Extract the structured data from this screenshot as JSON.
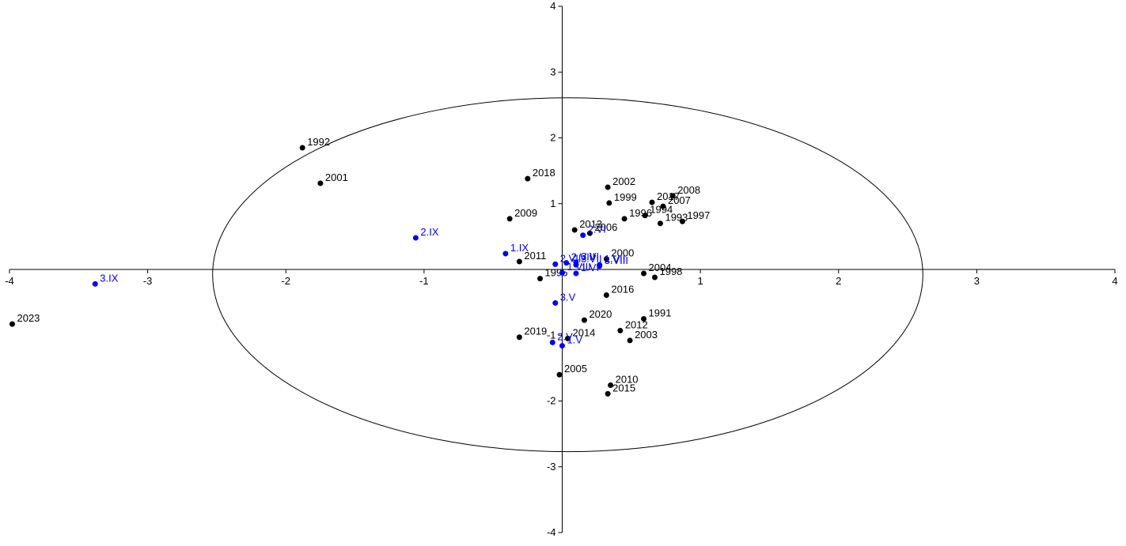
{
  "chart_data": {
    "type": "scatter",
    "title": "",
    "xlabel": "",
    "ylabel": "",
    "xlim": [
      -4,
      4
    ],
    "ylim": [
      -4,
      4
    ],
    "grid": false,
    "x_ticks": [
      -4,
      -3,
      -2,
      -1,
      1,
      2,
      3,
      4
    ],
    "y_ticks": [
      4,
      3,
      2,
      1,
      -1,
      -2,
      -3,
      -4
    ],
    "ellipse": {
      "cx": 0.04,
      "cy": -0.08,
      "rx": 2.57,
      "ry": 2.69
    },
    "colors": {
      "years": "#000000",
      "periods": "#0000ff",
      "axes": "#000000"
    },
    "series": [
      {
        "points": [
          {
            "label": "1991",
            "x": 0.59,
            "y": -0.75
          },
          {
            "label": "1992",
            "x": -1.88,
            "y": 1.85
          },
          {
            "label": "1993",
            "x": 0.71,
            "y": 0.7
          },
          {
            "label": "1994",
            "x": 0.6,
            "y": 0.82
          },
          {
            "label": "1995",
            "x": -0.16,
            "y": -0.14
          },
          {
            "label": "1996",
            "x": 0.45,
            "y": 0.77
          },
          {
            "label": "1997",
            "x": 0.87,
            "y": 0.73
          },
          {
            "label": "1998",
            "x": 0.67,
            "y": -0.12
          },
          {
            "label": "1999",
            "x": 0.34,
            "y": 1.01
          },
          {
            "label": "2000",
            "x": 0.32,
            "y": 0.16
          },
          {
            "label": "2001",
            "x": -1.75,
            "y": 1.31
          },
          {
            "label": "2002",
            "x": 0.33,
            "y": 1.25
          },
          {
            "label": "2003",
            "x": 0.49,
            "y": -1.08
          },
          {
            "label": "2004",
            "x": 0.59,
            "y": -0.06
          },
          {
            "label": "2005",
            "x": -0.02,
            "y": -1.6
          },
          {
            "label": "2006",
            "x": 0.2,
            "y": 0.55
          },
          {
            "label": "2007",
            "x": 0.73,
            "y": 0.96
          },
          {
            "label": "2008",
            "x": 0.8,
            "y": 1.12
          },
          {
            "label": "2009",
            "x": -0.38,
            "y": 0.77
          },
          {
            "label": "2010",
            "x": 0.35,
            "y": -1.76
          },
          {
            "label": "2011",
            "x": -0.31,
            "y": 0.12
          },
          {
            "label": "2012",
            "x": 0.42,
            "y": -0.93
          },
          {
            "label": "2013",
            "x": 0.09,
            "y": 0.6
          },
          {
            "label": "2014",
            "x": 0.04,
            "y": -1.05
          },
          {
            "label": "2015",
            "x": 0.33,
            "y": -1.89
          },
          {
            "label": "2016",
            "x": 0.32,
            "y": -0.39
          },
          {
            "label": "2017",
            "x": 0.65,
            "y": 1.02
          },
          {
            "label": "2018",
            "x": -0.25,
            "y": 1.38
          },
          {
            "label": "2019",
            "x": -0.31,
            "y": -1.03
          },
          {
            "label": "2020",
            "x": 0.16,
            "y": -0.77
          },
          {
            "label": "2023",
            "x": -3.98,
            "y": -0.83
          }
        ]
      },
      {
        "points": [
          {
            "label": "1.V",
            "x": 0.0,
            "y": -1.16
          },
          {
            "label": "1.VI",
            "x": 0.1,
            "y": -0.06
          },
          {
            "label": "1.VII",
            "x": 0.27,
            "y": 0.07
          },
          {
            "label": "1.VIII",
            "x": 0.0,
            "y": -0.05
          },
          {
            "label": "1.IX",
            "x": -0.41,
            "y": 0.24
          },
          {
            "label": "2.V",
            "x": -0.07,
            "y": -1.11
          },
          {
            "label": "2.VI",
            "x": 0.15,
            "y": 0.52
          },
          {
            "label": "2.VII",
            "x": -0.05,
            "y": 0.08
          },
          {
            "label": "2.VIII",
            "x": 0.03,
            "y": 0.1
          },
          {
            "label": "2.IX",
            "x": -1.06,
            "y": 0.48
          },
          {
            "label": "3.V",
            "x": -0.05,
            "y": -0.51
          },
          {
            "label": "3.VI",
            "x": 0.1,
            "y": 0.11
          },
          {
            "label": "3.VII",
            "x": 0.1,
            "y": 0.07
          },
          {
            "label": "3.VIII",
            "x": 0.27,
            "y": 0.05
          },
          {
            "label": "3.IX",
            "x": -3.38,
            "y": -0.22
          }
        ]
      }
    ]
  }
}
